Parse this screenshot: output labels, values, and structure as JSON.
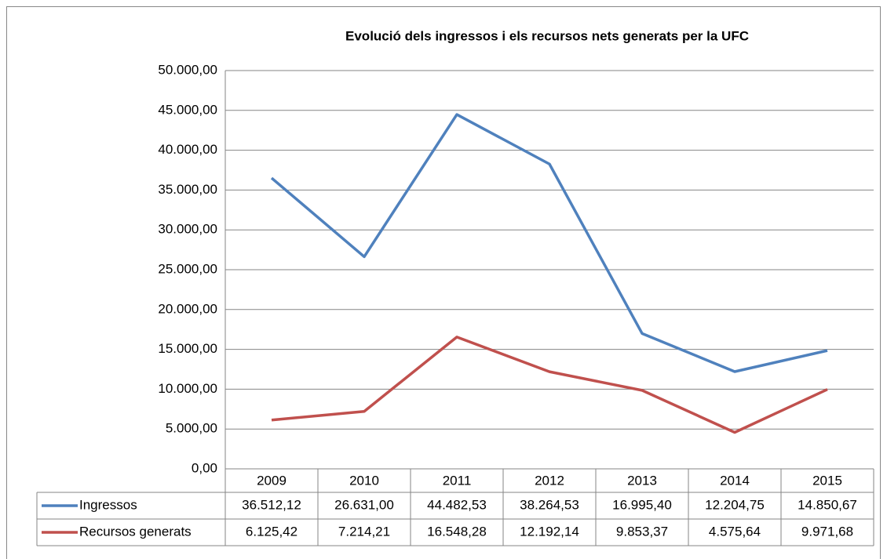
{
  "chart_data": {
    "type": "line",
    "title": "Evolució dels ingressos i els recursos nets generats per la UFC",
    "categories": [
      "2009",
      "2010",
      "2011",
      "2012",
      "2013",
      "2014",
      "2015"
    ],
    "series": [
      {
        "name": "Ingressos",
        "color": "#4f81bd",
        "values": [
          36512.12,
          26631.0,
          44482.53,
          38264.53,
          16995.4,
          12204.75,
          14850.67
        ],
        "value_labels": [
          "36.512,12",
          "26.631,00",
          "44.482,53",
          "38.264,53",
          "16.995,40",
          "12.204,75",
          "14.850,67"
        ]
      },
      {
        "name": "Recursos generats",
        "color": "#c0504d",
        "values": [
          6125.42,
          7214.21,
          16548.28,
          12192.14,
          9853.37,
          4575.64,
          9971.68
        ],
        "value_labels": [
          "6.125,42",
          "7.214,21",
          "16.548,28",
          "12.192,14",
          "9.853,37",
          "4.575,64",
          "9.971,68"
        ]
      }
    ],
    "ylim": [
      0,
      50000
    ],
    "yticks": [
      {
        "value": 0,
        "label": "0,00"
      },
      {
        "value": 5000,
        "label": "5.000,00"
      },
      {
        "value": 10000,
        "label": "10.000,00"
      },
      {
        "value": 15000,
        "label": "15.000,00"
      },
      {
        "value": 20000,
        "label": "20.000,00"
      },
      {
        "value": 25000,
        "label": "25.000,00"
      },
      {
        "value": 30000,
        "label": "30.000,00"
      },
      {
        "value": 35000,
        "label": "35.000,00"
      },
      {
        "value": 40000,
        "label": "40.000,00"
      },
      {
        "value": 45000,
        "label": "45.000,00"
      },
      {
        "value": 50000,
        "label": "50.000,00"
      }
    ],
    "grid": true
  }
}
